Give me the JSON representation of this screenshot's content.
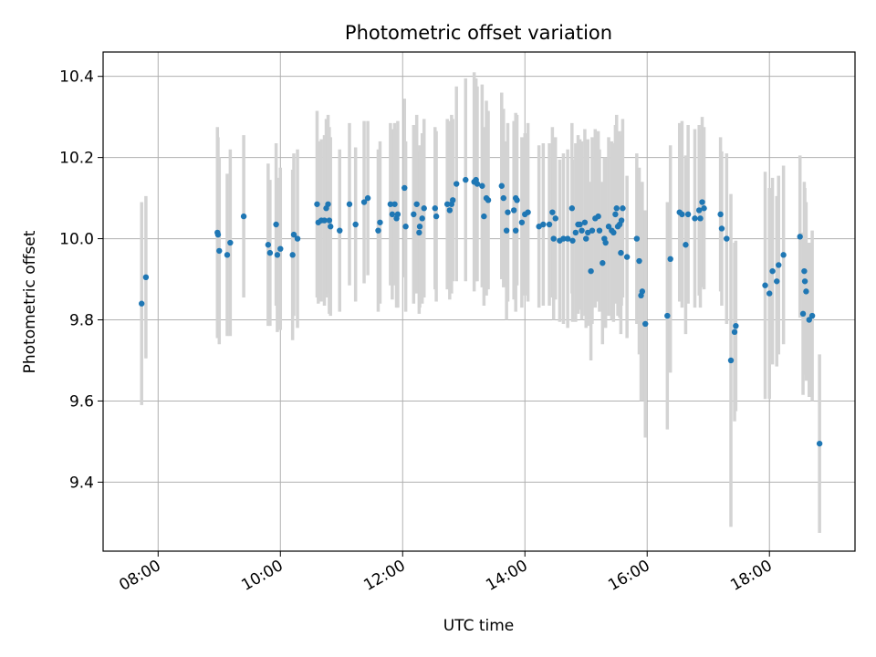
{
  "chart_data": {
    "type": "scatter",
    "title": "Photometric offset variation",
    "xlabel": "UTC time",
    "ylabel": "Photometric offset",
    "x_unit": "hours UTC",
    "xlim": [
      7.1,
      19.4
    ],
    "ylim": [
      9.23,
      10.46
    ],
    "x_ticks": [
      8,
      10,
      12,
      14,
      16,
      18
    ],
    "x_tick_labels": [
      "08:00",
      "10:00",
      "12:00",
      "14:00",
      "16:00",
      "18:00"
    ],
    "y_ticks": [
      9.4,
      9.6,
      9.8,
      10.0,
      10.2,
      10.4
    ],
    "y_tick_labels": [
      "9.4",
      "9.6",
      "9.8",
      "10.0",
      "10.2",
      "10.4"
    ],
    "grid": true,
    "marker_color": "#1f77b4",
    "errorbar_color": "#d3d3d3",
    "points": [
      [
        7.73,
        9.84,
        0.25
      ],
      [
        7.8,
        9.905,
        0.2
      ],
      [
        8.97,
        10.015,
        0.26
      ],
      [
        8.98,
        10.01,
        0.24
      ],
      [
        9.0,
        9.97,
        0.23
      ],
      [
        9.13,
        9.96,
        0.2
      ],
      [
        9.18,
        9.99,
        0.23
      ],
      [
        9.4,
        10.055,
        0.2
      ],
      [
        9.8,
        9.985,
        0.2
      ],
      [
        9.83,
        9.965,
        0.18
      ],
      [
        9.93,
        10.035,
        0.2
      ],
      [
        9.95,
        9.96,
        0.19
      ],
      [
        10.0,
        9.975,
        0.2
      ],
      [
        10.2,
        9.96,
        0.21
      ],
      [
        10.22,
        10.01,
        0.2
      ],
      [
        10.28,
        10.0,
        0.22
      ],
      [
        10.6,
        10.085,
        0.23
      ],
      [
        10.62,
        10.04,
        0.2
      ],
      [
        10.67,
        10.045,
        0.2
      ],
      [
        10.72,
        10.045,
        0.21
      ],
      [
        10.75,
        10.075,
        0.22
      ],
      [
        10.78,
        10.085,
        0.22
      ],
      [
        10.8,
        10.045,
        0.23
      ],
      [
        10.82,
        10.03,
        0.22
      ],
      [
        10.97,
        10.02,
        0.2
      ],
      [
        11.13,
        10.085,
        0.2
      ],
      [
        11.23,
        10.035,
        0.19
      ],
      [
        11.37,
        10.09,
        0.2
      ],
      [
        11.43,
        10.1,
        0.19
      ],
      [
        11.6,
        10.02,
        0.2
      ],
      [
        11.63,
        10.04,
        0.2
      ],
      [
        11.8,
        10.085,
        0.2
      ],
      [
        11.83,
        10.06,
        0.21
      ],
      [
        11.87,
        10.085,
        0.2
      ],
      [
        11.9,
        10.05,
        0.22
      ],
      [
        11.92,
        10.06,
        0.23
      ],
      [
        12.03,
        10.125,
        0.22
      ],
      [
        12.05,
        10.03,
        0.21
      ],
      [
        12.18,
        10.06,
        0.22
      ],
      [
        12.23,
        10.085,
        0.22
      ],
      [
        12.27,
        10.015,
        0.2
      ],
      [
        12.28,
        10.03,
        0.2
      ],
      [
        12.32,
        10.05,
        0.21
      ],
      [
        12.35,
        10.075,
        0.22
      ],
      [
        12.53,
        10.075,
        0.2
      ],
      [
        12.55,
        10.055,
        0.21
      ],
      [
        12.73,
        10.085,
        0.21
      ],
      [
        12.77,
        10.07,
        0.22
      ],
      [
        12.8,
        10.085,
        0.22
      ],
      [
        12.82,
        10.095,
        0.2
      ],
      [
        12.88,
        10.135,
        0.24
      ],
      [
        13.03,
        10.145,
        0.25
      ],
      [
        13.17,
        10.14,
        0.27
      ],
      [
        13.2,
        10.145,
        0.25
      ],
      [
        13.22,
        10.135,
        0.24
      ],
      [
        13.3,
        10.13,
        0.25
      ],
      [
        13.33,
        10.055,
        0.22
      ],
      [
        13.37,
        10.1,
        0.24
      ],
      [
        13.4,
        10.095,
        0.22
      ],
      [
        13.62,
        10.13,
        0.23
      ],
      [
        13.65,
        10.1,
        0.22
      ],
      [
        13.7,
        10.02,
        0.22
      ],
      [
        13.72,
        10.065,
        0.22
      ],
      [
        13.82,
        10.07,
        0.22
      ],
      [
        13.85,
        10.1,
        0.21
      ],
      [
        13.87,
        10.095,
        0.21
      ],
      [
        13.85,
        10.02,
        0.2
      ],
      [
        13.95,
        10.04,
        0.21
      ],
      [
        14.0,
        10.06,
        0.2
      ],
      [
        14.05,
        10.065,
        0.22
      ],
      [
        14.23,
        10.03,
        0.2
      ],
      [
        14.3,
        10.035,
        0.2
      ],
      [
        14.4,
        10.035,
        0.2
      ],
      [
        14.45,
        10.065,
        0.21
      ],
      [
        14.47,
        10.0,
        0.2
      ],
      [
        14.5,
        10.05,
        0.2
      ],
      [
        14.57,
        9.995,
        0.2
      ],
      [
        14.63,
        10.0,
        0.21
      ],
      [
        14.7,
        10.0,
        0.22
      ],
      [
        14.77,
        10.075,
        0.21
      ],
      [
        14.78,
        9.995,
        0.2
      ],
      [
        14.83,
        10.015,
        0.22
      ],
      [
        14.87,
        10.035,
        0.22
      ],
      [
        14.9,
        10.035,
        0.21
      ],
      [
        14.93,
        10.02,
        0.22
      ],
      [
        14.98,
        10.04,
        0.23
      ],
      [
        15.0,
        10.0,
        0.22
      ],
      [
        15.03,
        10.015,
        0.23
      ],
      [
        15.08,
        9.92,
        0.22
      ],
      [
        15.1,
        10.02,
        0.23
      ],
      [
        15.15,
        10.05,
        0.22
      ],
      [
        15.2,
        10.055,
        0.21
      ],
      [
        15.22,
        10.02,
        0.2
      ],
      [
        15.27,
        9.94,
        0.2
      ],
      [
        15.3,
        10.0,
        0.2
      ],
      [
        15.32,
        9.99,
        0.21
      ],
      [
        15.37,
        10.03,
        0.22
      ],
      [
        15.42,
        10.02,
        0.22
      ],
      [
        15.45,
        10.015,
        0.22
      ],
      [
        15.48,
        10.06,
        0.22
      ],
      [
        15.5,
        10.075,
        0.23
      ],
      [
        15.52,
        10.03,
        0.22
      ],
      [
        15.55,
        10.035,
        0.23
      ],
      [
        15.57,
        9.965,
        0.2
      ],
      [
        15.58,
        10.045,
        0.21
      ],
      [
        15.6,
        10.075,
        0.22
      ],
      [
        15.67,
        9.955,
        0.2
      ],
      [
        15.83,
        10.0,
        0.21
      ],
      [
        15.87,
        9.945,
        0.23
      ],
      [
        15.9,
        9.86,
        0.26
      ],
      [
        15.92,
        9.87,
        0.27
      ],
      [
        15.97,
        9.79,
        0.28
      ],
      [
        16.33,
        9.81,
        0.28
      ],
      [
        16.38,
        9.95,
        0.28
      ],
      [
        16.53,
        10.065,
        0.22
      ],
      [
        16.57,
        10.06,
        0.23
      ],
      [
        16.63,
        9.985,
        0.22
      ],
      [
        16.67,
        10.06,
        0.22
      ],
      [
        16.78,
        10.05,
        0.22
      ],
      [
        16.85,
        10.07,
        0.21
      ],
      [
        16.87,
        10.05,
        0.22
      ],
      [
        16.9,
        10.09,
        0.21
      ],
      [
        16.93,
        10.075,
        0.2
      ],
      [
        17.2,
        10.06,
        0.19
      ],
      [
        17.22,
        10.025,
        0.19
      ],
      [
        17.3,
        10.0,
        0.21
      ],
      [
        17.37,
        9.7,
        0.41
      ],
      [
        17.43,
        9.77,
        0.22
      ],
      [
        17.45,
        9.785,
        0.21
      ],
      [
        17.93,
        9.885,
        0.28
      ],
      [
        18.0,
        9.865,
        0.26
      ],
      [
        18.05,
        9.92,
        0.23
      ],
      [
        18.12,
        9.895,
        0.21
      ],
      [
        18.15,
        9.935,
        0.22
      ],
      [
        18.23,
        9.96,
        0.22
      ],
      [
        18.5,
        10.005,
        0.2
      ],
      [
        18.55,
        9.815,
        0.2
      ],
      [
        18.57,
        9.92,
        0.22
      ],
      [
        18.58,
        9.895,
        0.23
      ],
      [
        18.6,
        9.87,
        0.22
      ],
      [
        18.65,
        9.8,
        0.19
      ],
      [
        18.7,
        9.81,
        0.21
      ],
      [
        18.82,
        9.495,
        0.22
      ]
    ]
  }
}
